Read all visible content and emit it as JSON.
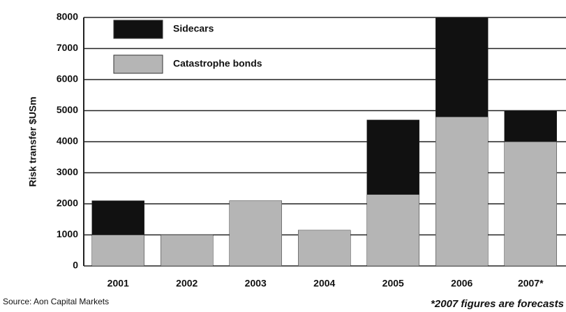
{
  "chart_data": {
    "type": "stacked-bar",
    "y_label": "Risk transfer $USm",
    "categories": [
      "2001",
      "2002",
      "2003",
      "2004",
      "2005",
      "2006",
      "2007*"
    ],
    "series": [
      {
        "name": "Sidecars",
        "color": "#111111",
        "values": [
          1100,
          0,
          0,
          0,
          2400,
          3200,
          1000
        ]
      },
      {
        "name": "Catastrophe bonds",
        "color": "#b5b5b5",
        "values": [
          1000,
          1000,
          2100,
          1150,
          2300,
          4800,
          4000
        ]
      }
    ],
    "ylim": [
      0,
      8000
    ],
    "yticks": [
      0,
      1000,
      2000,
      3000,
      4000,
      5000,
      6000,
      7000,
      8000
    ],
    "grid": true,
    "source": "Source: Aon Capital Markets",
    "note": "*2007 figures are forecasts"
  }
}
